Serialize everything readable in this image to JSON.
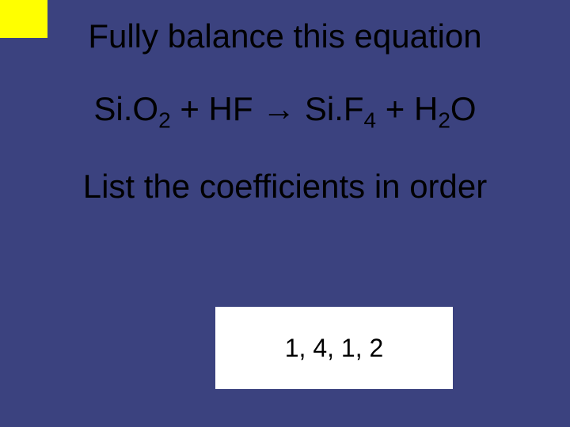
{
  "slide": {
    "background_color": "#3b427f",
    "corner_block_color": "#ffff00",
    "title": "Fully balance this equation",
    "equation_parts": {
      "r1a": "Si.",
      "r1b": "O",
      "r1sub": "2",
      "plus1": " + ",
      "r2": "HF",
      "arrow": " → ",
      "p1a": "Si.",
      "p1b": "F",
      "p1sub": "4",
      "plus2": " + ",
      "p2a": "H",
      "p2sub": "2",
      "p2b": "O"
    },
    "instruction": "List the coefficients in order",
    "answer": "1, 4, 1, 2",
    "answer_box_color": "#ffffff",
    "text_color": "#000000",
    "title_fontsize": 42,
    "equation_fontsize": 42,
    "answer_fontsize": 32
  }
}
